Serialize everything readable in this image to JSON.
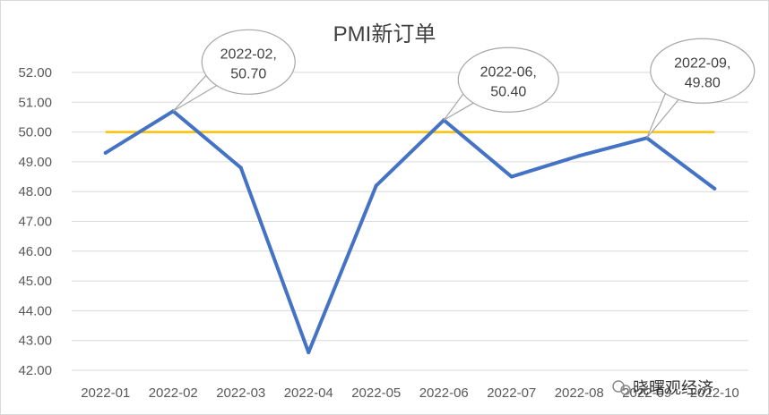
{
  "chart_data": {
    "type": "line",
    "title": "PMI新订单",
    "xlabel": "",
    "ylabel": "",
    "categories": [
      "2022-01",
      "2022-02",
      "2022-03",
      "2022-04",
      "2022-05",
      "2022-06",
      "2022-07",
      "2022-08",
      "2022-09",
      "2022-10"
    ],
    "series": [
      {
        "values": [
          49.3,
          50.7,
          48.8,
          42.6,
          48.2,
          50.4,
          48.5,
          49.2,
          49.8,
          48.1
        ],
        "color": "#4472C4"
      }
    ],
    "reference_line": {
      "value": 50.0,
      "color": "#FFC000"
    },
    "ylim": [
      42,
      52
    ],
    "yticks": [
      "42.00",
      "43.00",
      "44.00",
      "45.00",
      "46.00",
      "47.00",
      "48.00",
      "49.00",
      "50.00",
      "51.00",
      "52.00"
    ],
    "grid": true,
    "annotations": [
      {
        "category_index": 1,
        "line1": "2022-02,",
        "line2": "50.70"
      },
      {
        "category_index": 5,
        "line1": "2022-06,",
        "line2": "50.40"
      },
      {
        "category_index": 8,
        "line1": "2022-09,",
        "line2": "49.80"
      }
    ]
  },
  "watermark": "晓曙观经济"
}
